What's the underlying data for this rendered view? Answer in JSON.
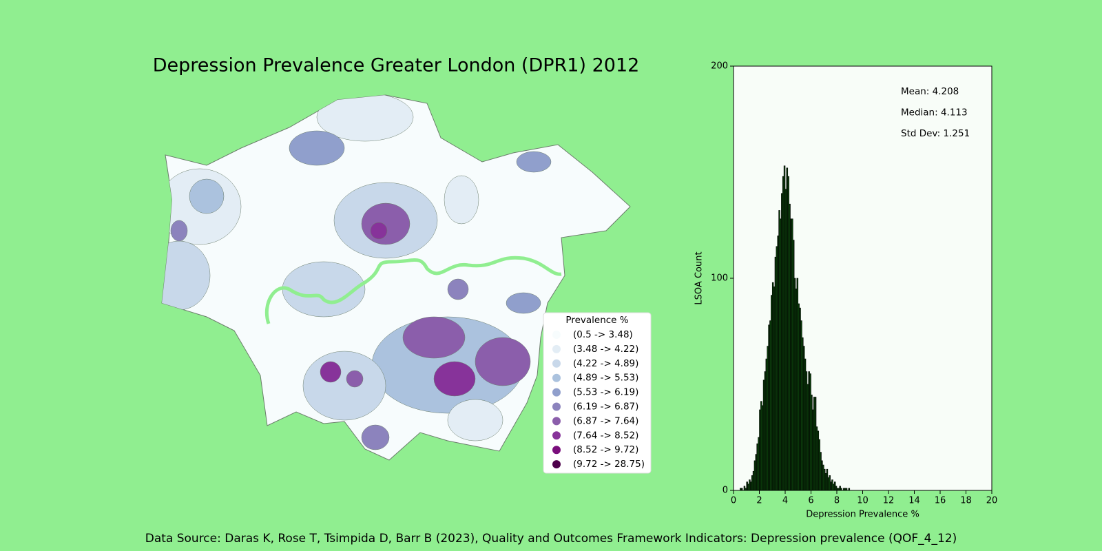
{
  "title": "Depression Prevalence Greater London (DPR1) 2012",
  "source": "Data Source: Daras K, Rose T, Tsimpida D, Barr B (2023), Quality and Outcomes Framework Indicators: Depression prevalence (QOF_4_12)",
  "map": {
    "legend_title": "Prevalence %",
    "items": [
      {
        "label": "(0.5 -> 3.48)",
        "color": "#f7fcfd"
      },
      {
        "label": "(3.48 -> 4.22)",
        "color": "#e3edf5"
      },
      {
        "label": "(4.22 -> 4.89)",
        "color": "#c8d8ea"
      },
      {
        "label": "(4.89 -> 5.53)",
        "color": "#abc2de"
      },
      {
        "label": "(5.53 -> 6.19)",
        "color": "#909fcc"
      },
      {
        "label": "(6.19 -> 6.87)",
        "color": "#8c83bd"
      },
      {
        "label": "(6.87 -> 7.64)",
        "color": "#8b5eab"
      },
      {
        "label": "(7.64 -> 8.52)",
        "color": "#87339a"
      },
      {
        "label": "(8.52 -> 9.72)",
        "color": "#7a0e7c"
      },
      {
        "label": "(9.72 -> 28.75)",
        "color": "#4d004b"
      }
    ]
  },
  "chart_data": {
    "type": "histogram",
    "xlabel": "Depression Prevalence %",
    "ylabel": "LSOA Count",
    "color": "#0b3d0b",
    "edgecolor": "#000000",
    "annotations": [
      "Mean: 4.208",
      "Median: 4.113",
      "Std Dev: 1.251"
    ],
    "bins": [
      0.5,
      0.6,
      0.7,
      0.8,
      0.9,
      1.0,
      1.1,
      1.2,
      1.3,
      1.4,
      1.5,
      1.6,
      1.7,
      1.8,
      1.9,
      2.0,
      2.1,
      2.2,
      2.3,
      2.4,
      2.5,
      2.6,
      2.7,
      2.8,
      2.9,
      3.0,
      3.1,
      3.2,
      3.3,
      3.4,
      3.5,
      3.6,
      3.7,
      3.8,
      3.9,
      4.0,
      4.1,
      4.2,
      4.3,
      4.4,
      4.5,
      4.6,
      4.7,
      4.8,
      4.9,
      5.0,
      5.1,
      5.2,
      5.3,
      5.4,
      5.5,
      5.6,
      5.7,
      5.8,
      5.9,
      6.0,
      6.1,
      6.2,
      6.3,
      6.4,
      6.5,
      6.6,
      6.7,
      6.8,
      6.9,
      7.0,
      7.1,
      7.2,
      7.3,
      7.4,
      7.5,
      7.6,
      7.7,
      7.8,
      7.9,
      8.0,
      8.1,
      8.2,
      8.3,
      8.4,
      8.5,
      8.6,
      8.7,
      8.8,
      8.9,
      9.0
    ],
    "values": [
      1,
      1,
      0,
      2,
      1,
      4,
      3,
      5,
      4,
      7,
      9,
      14,
      17,
      22,
      25,
      38,
      42,
      40,
      52,
      56,
      62,
      68,
      78,
      80,
      92,
      98,
      96,
      110,
      115,
      120,
      132,
      128,
      140,
      148,
      153,
      142,
      152,
      148,
      135,
      128,
      128,
      118,
      100,
      95,
      100,
      88,
      86,
      80,
      72,
      68,
      62,
      56,
      50,
      56,
      55,
      45,
      38,
      44,
      44,
      30,
      28,
      24,
      18,
      14,
      12,
      10,
      8,
      10,
      6,
      7,
      4,
      5,
      3,
      4,
      2,
      1,
      1,
      2,
      1,
      0,
      1,
      1,
      1,
      0,
      1
    ],
    "xlim": [
      0,
      20
    ],
    "xticks": [
      0,
      2,
      4,
      6,
      8,
      10,
      12,
      14,
      16,
      18,
      20
    ],
    "ylim": [
      0,
      200
    ],
    "yticks": [
      0,
      100,
      200
    ]
  }
}
